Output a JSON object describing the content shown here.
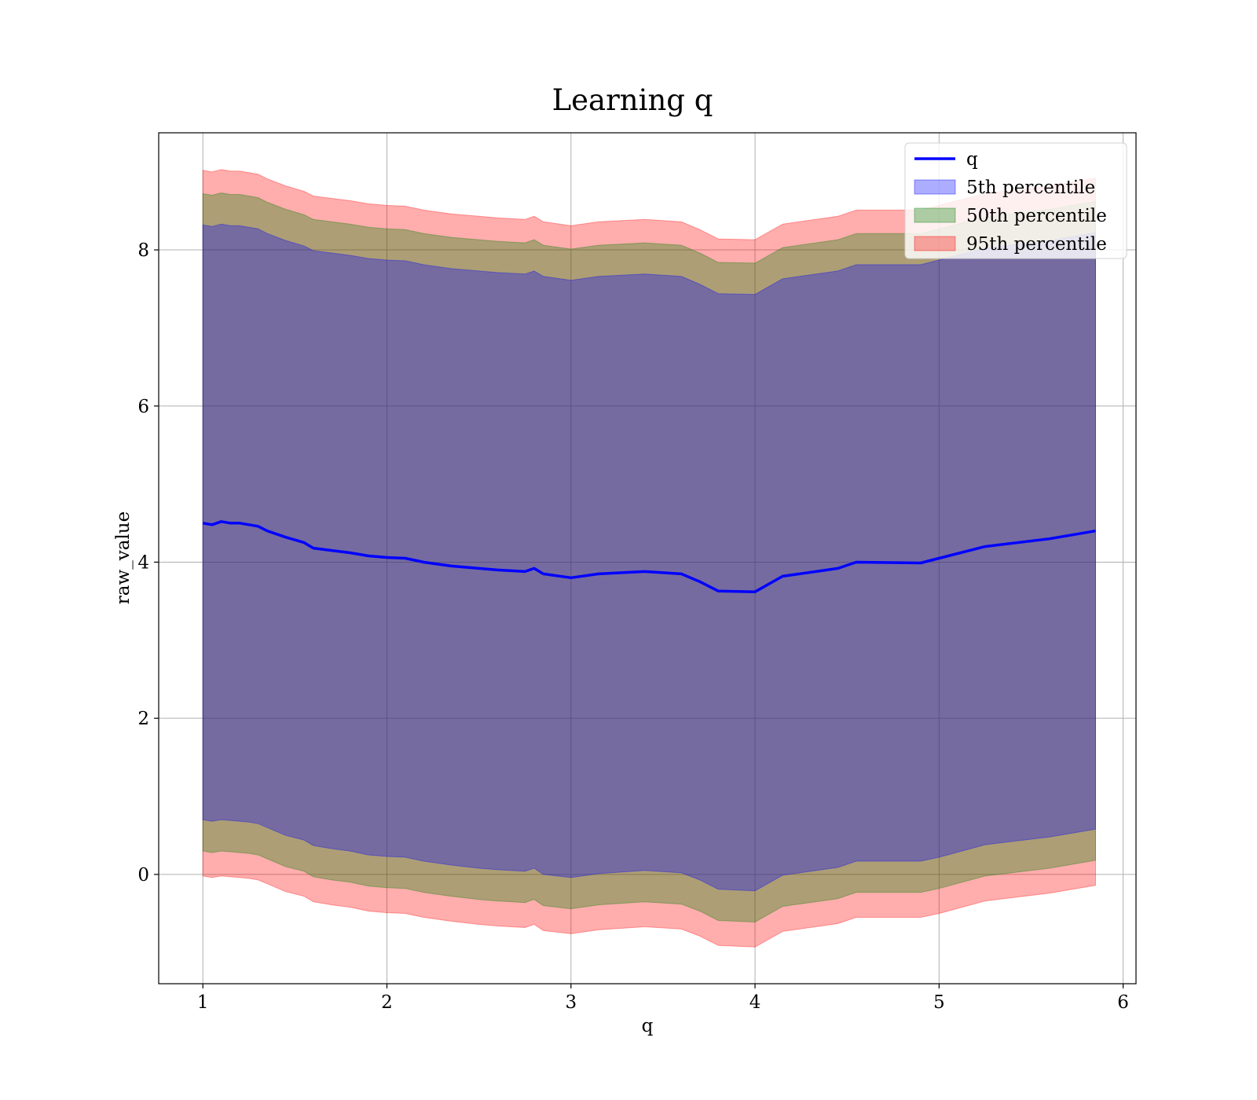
{
  "chart_data": {
    "type": "line",
    "title": "Learning q",
    "xlabel": "q",
    "ylabel": "raw_value",
    "xlim": [
      0.76,
      6.07
    ],
    "ylim": [
      -1.4,
      9.5
    ],
    "xticks": [
      1,
      2,
      3,
      4,
      5,
      6
    ],
    "yticks": [
      0,
      2,
      4,
      6,
      8
    ],
    "grid": true,
    "legend_position": "top-right",
    "x": [
      1.0,
      1.05,
      1.1,
      1.15,
      1.2,
      1.25,
      1.3,
      1.35,
      1.45,
      1.55,
      1.6,
      1.7,
      1.8,
      1.9,
      2.0,
      2.1,
      2.2,
      2.35,
      2.5,
      2.6,
      2.75,
      2.8,
      2.85,
      3.0,
      3.15,
      3.4,
      3.6,
      3.7,
      3.8,
      4.0,
      4.15,
      4.45,
      4.55,
      4.9,
      5.0,
      5.25,
      5.6,
      5.85
    ],
    "series": [
      {
        "name": "q",
        "kind": "line",
        "color": "#0000ff",
        "values": [
          4.5,
          4.48,
          4.52,
          4.5,
          4.5,
          4.48,
          4.46,
          4.4,
          4.32,
          4.25,
          4.18,
          4.15,
          4.12,
          4.08,
          4.06,
          4.05,
          4.0,
          3.95,
          3.92,
          3.9,
          3.88,
          3.92,
          3.85,
          3.8,
          3.85,
          3.88,
          3.85,
          3.75,
          3.63,
          3.62,
          3.82,
          3.92,
          4.0,
          3.99,
          4.05,
          4.2,
          4.3,
          4.4
        ]
      },
      {
        "name": "5th percentile",
        "kind": "band",
        "color": "#0000ff",
        "lower": [
          0.7,
          0.68,
          0.7,
          0.69,
          0.68,
          0.67,
          0.65,
          0.6,
          0.5,
          0.44,
          0.37,
          0.33,
          0.3,
          0.25,
          0.23,
          0.22,
          0.17,
          0.12,
          0.08,
          0.06,
          0.04,
          0.08,
          0.0,
          -0.04,
          0.01,
          0.05,
          0.02,
          -0.07,
          -0.19,
          -0.21,
          -0.01,
          0.09,
          0.17,
          0.17,
          0.22,
          0.38,
          0.48,
          0.58
        ],
        "upper": [
          8.32,
          8.3,
          8.33,
          8.31,
          8.31,
          8.29,
          8.27,
          8.21,
          8.12,
          8.05,
          7.99,
          7.96,
          7.93,
          7.89,
          7.87,
          7.86,
          7.81,
          7.76,
          7.73,
          7.71,
          7.69,
          7.73,
          7.66,
          7.61,
          7.66,
          7.69,
          7.66,
          7.56,
          7.44,
          7.43,
          7.63,
          7.73,
          7.81,
          7.81,
          7.87,
          8.02,
          8.12,
          8.22
        ]
      },
      {
        "name": "50th percentile",
        "kind": "band",
        "color": "#008000",
        "lower": [
          0.3,
          0.28,
          0.3,
          0.29,
          0.28,
          0.27,
          0.25,
          0.2,
          0.1,
          0.04,
          -0.03,
          -0.07,
          -0.1,
          -0.15,
          -0.17,
          -0.18,
          -0.23,
          -0.28,
          -0.32,
          -0.34,
          -0.36,
          -0.32,
          -0.4,
          -0.44,
          -0.39,
          -0.35,
          -0.38,
          -0.47,
          -0.59,
          -0.61,
          -0.41,
          -0.31,
          -0.23,
          -0.23,
          -0.18,
          -0.02,
          0.08,
          0.18
        ],
        "upper": [
          8.72,
          8.7,
          8.73,
          8.71,
          8.71,
          8.69,
          8.67,
          8.61,
          8.52,
          8.45,
          8.39,
          8.36,
          8.33,
          8.29,
          8.27,
          8.26,
          8.21,
          8.16,
          8.13,
          8.11,
          8.09,
          8.13,
          8.06,
          8.01,
          8.06,
          8.09,
          8.06,
          7.96,
          7.84,
          7.83,
          8.03,
          8.13,
          8.21,
          8.21,
          8.27,
          8.42,
          8.52,
          8.62
        ]
      },
      {
        "name": "95th percentile",
        "kind": "band",
        "color": "#ff0000",
        "lower": [
          -0.02,
          -0.04,
          -0.02,
          -0.03,
          -0.04,
          -0.05,
          -0.07,
          -0.12,
          -0.22,
          -0.28,
          -0.35,
          -0.39,
          -0.42,
          -0.47,
          -0.49,
          -0.5,
          -0.55,
          -0.6,
          -0.64,
          -0.66,
          -0.68,
          -0.64,
          -0.72,
          -0.76,
          -0.71,
          -0.67,
          -0.7,
          -0.79,
          -0.91,
          -0.93,
          -0.73,
          -0.63,
          -0.55,
          -0.55,
          -0.5,
          -0.34,
          -0.24,
          -0.14
        ],
        "upper": [
          9.02,
          9.0,
          9.03,
          9.01,
          9.01,
          8.99,
          8.97,
          8.91,
          8.82,
          8.75,
          8.69,
          8.66,
          8.63,
          8.59,
          8.57,
          8.56,
          8.51,
          8.46,
          8.43,
          8.41,
          8.39,
          8.43,
          8.36,
          8.31,
          8.36,
          8.39,
          8.36,
          8.26,
          8.14,
          8.13,
          8.33,
          8.43,
          8.51,
          8.51,
          8.57,
          8.72,
          8.82,
          8.92
        ]
      }
    ]
  }
}
